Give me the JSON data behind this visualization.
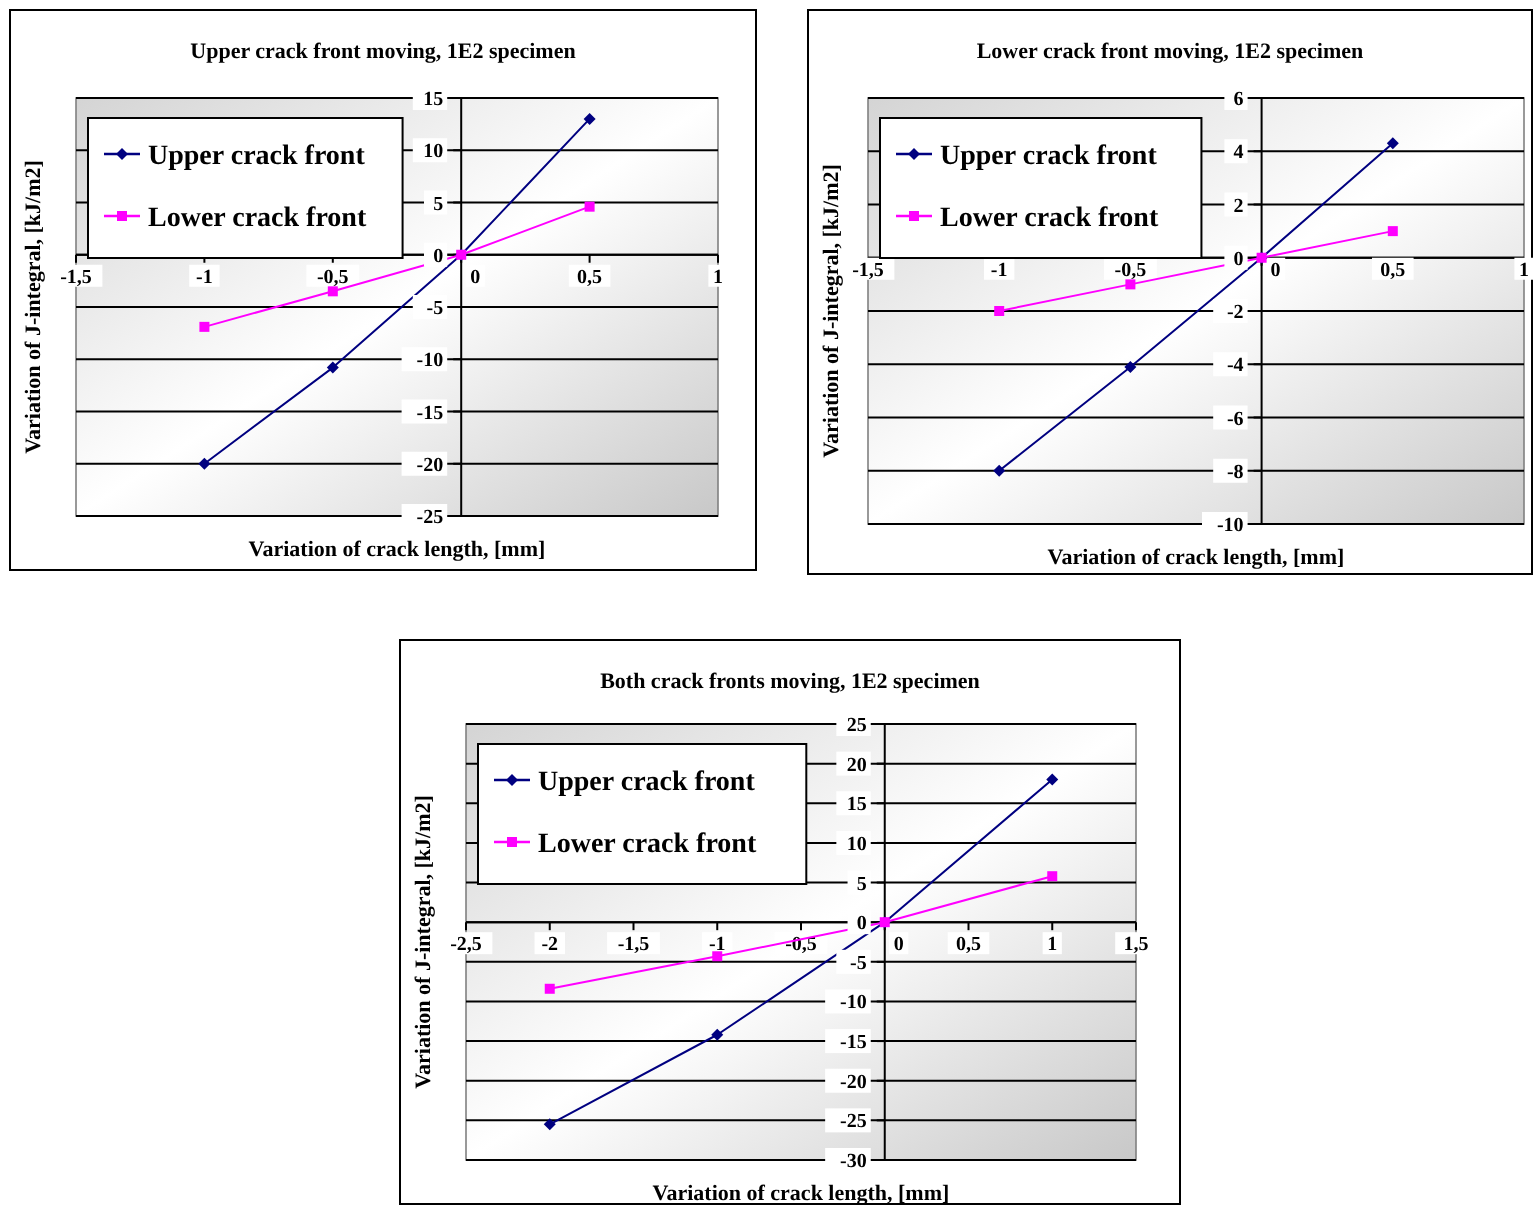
{
  "chart_data": [
    {
      "type": "line",
      "title": "Upper crack front moving, 1E2 specimen",
      "xlabel": "Variation of crack length, [mm]",
      "ylabel": "Variation of J-integral, [kJ/m2]",
      "x": [
        -1,
        -0.5,
        0,
        0.5
      ],
      "xlim": [
        -1.5,
        1
      ],
      "ylim": [
        -25,
        15
      ],
      "xticks": [
        {
          "value": -1.5,
          "label": "-1,5"
        },
        -1,
        {
          "value": -0.5,
          "label": "-0,5"
        },
        0,
        {
          "value": 0.5,
          "label": "0,5"
        },
        1
      ],
      "yticks": [
        -25,
        -20,
        -15,
        -10,
        -5,
        0,
        5,
        10,
        15
      ],
      "grid": "y",
      "legend": "top left",
      "series": [
        {
          "name": "Upper crack front",
          "color": "#000080",
          "marker": "diamond",
          "values": [
            -20,
            -10.8,
            0,
            13
          ]
        },
        {
          "name": "Lower crack front",
          "color": "#ff00ff",
          "marker": "square",
          "values": [
            -6.9,
            -3.5,
            0,
            4.6
          ]
        }
      ]
    },
    {
      "type": "line",
      "title": "Lower crack front moving, 1E2 specimen",
      "xlabel": "Variation of crack length, [mm]",
      "ylabel": "Variation of J-integral, [kJ/m2]",
      "x": [
        -1,
        -0.5,
        0,
        0.5
      ],
      "xlim": [
        -1.5,
        1
      ],
      "ylim": [
        -10,
        6
      ],
      "xticks": [
        {
          "value": -1.5,
          "label": "-1,5"
        },
        -1,
        {
          "value": -0.5,
          "label": "-0,5"
        },
        0,
        {
          "value": 0.5,
          "label": "0,5"
        },
        1
      ],
      "yticks": [
        -10,
        -8,
        -6,
        -4,
        -2,
        0,
        2,
        4,
        6
      ],
      "grid": "y",
      "legend": "top left",
      "series": [
        {
          "name": "Upper crack front",
          "color": "#000080",
          "marker": "diamond",
          "values": [
            -8,
            -4.1,
            0,
            4.3
          ]
        },
        {
          "name": "Lower crack front",
          "color": "#ff00ff",
          "marker": "square",
          "values": [
            -2,
            -1,
            0,
            1
          ]
        }
      ]
    },
    {
      "type": "line",
      "title": "Both crack fronts moving, 1E2 specimen",
      "xlabel": "Variation of crack length, [mm]",
      "ylabel": "Variation of J-integral, [kJ/m2]",
      "x": [
        -2,
        -1,
        0,
        1
      ],
      "xlim": [
        -2.5,
        1.5
      ],
      "ylim": [
        -30,
        25
      ],
      "xticks": [
        {
          "value": -2.5,
          "label": "-2,5"
        },
        -2,
        {
          "value": -1.5,
          "label": "-1,5"
        },
        -1,
        {
          "value": -0.5,
          "label": "-0,5"
        },
        0,
        {
          "value": 0.5,
          "label": "0,5"
        },
        1,
        {
          "value": 1.5,
          "label": "1,5"
        }
      ],
      "yticks": [
        -30,
        -25,
        -20,
        -15,
        -10,
        -5,
        0,
        5,
        10,
        15,
        20,
        25
      ],
      "grid": "y",
      "legend": "top left",
      "series": [
        {
          "name": "Upper crack front",
          "color": "#000080",
          "marker": "diamond",
          "values": [
            -25.5,
            -14.2,
            0,
            18
          ]
        },
        {
          "name": "Lower crack front",
          "color": "#ff00ff",
          "marker": "square",
          "values": [
            -8.4,
            -4.3,
            0,
            5.8
          ]
        }
      ]
    }
  ]
}
